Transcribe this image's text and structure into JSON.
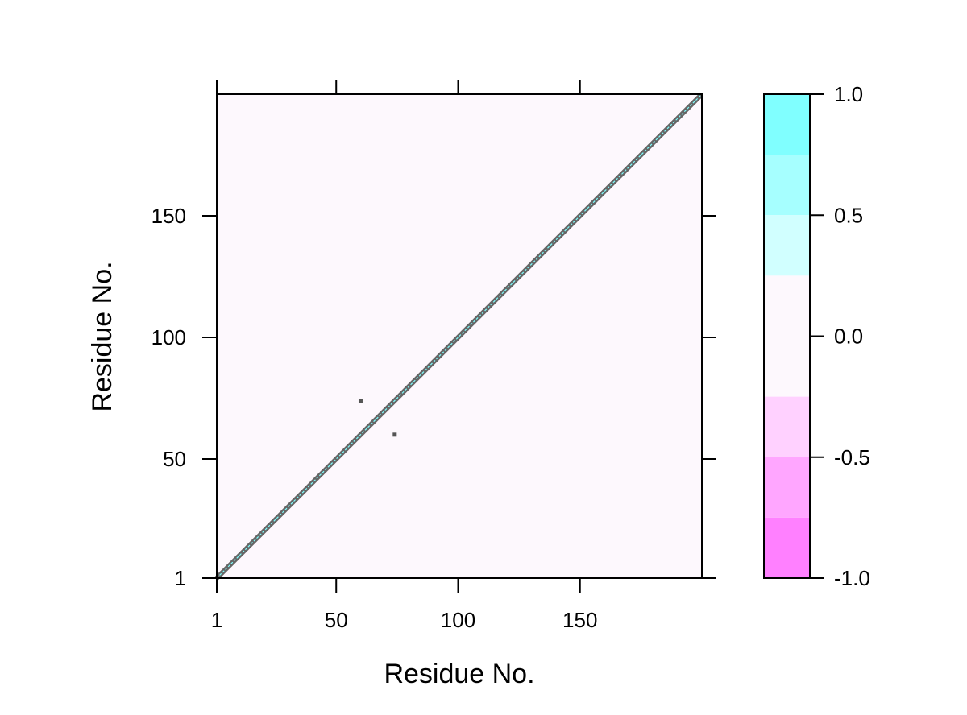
{
  "chart_data": {
    "type": "heatmap",
    "title": "",
    "xlabel": "Residue No.",
    "ylabel": "Residue No.",
    "xlim": [
      1,
      200
    ],
    "ylim": [
      1,
      200
    ],
    "x_ticks": [
      1,
      50,
      100,
      150
    ],
    "y_ticks": [
      1,
      50,
      100,
      150
    ],
    "x_tick_labels": [
      "1",
      "50",
      "100",
      "150"
    ],
    "y_tick_labels": [
      "1",
      "50",
      "100",
      "150"
    ],
    "background_value": 0.0,
    "background_color": "#fdf8fd",
    "diagonal": {
      "from": [
        1,
        1
      ],
      "to": [
        200,
        200
      ],
      "value": 1.0,
      "line_color": "#666666",
      "center_color": "#7fffff"
    },
    "off_diagonal_points": [
      {
        "x": 60,
        "y": 74
      },
      {
        "x": 74,
        "y": 60
      }
    ],
    "point_color": "#555555",
    "grid": false,
    "colorbar": {
      "position": "right",
      "range": [
        -1.0,
        1.0
      ],
      "tick_values": [
        1.0,
        0.5,
        0.0,
        -0.5,
        -1.0
      ],
      "tick_labels": [
        "1.0",
        "0.5",
        "0.0",
        "-0.5",
        "-1.0"
      ],
      "bins": [
        {
          "from": 0.75,
          "to": 1.0,
          "color": "#80ffff"
        },
        {
          "from": 0.5,
          "to": 0.75,
          "color": "#a6ffff"
        },
        {
          "from": 0.25,
          "to": 0.5,
          "color": "#d1ffff"
        },
        {
          "from": -0.25,
          "to": 0.25,
          "color": "#fdf8fd"
        },
        {
          "from": -0.5,
          "to": -0.25,
          "color": "#ffd1ff"
        },
        {
          "from": -0.75,
          "to": -0.5,
          "color": "#ffa6ff"
        },
        {
          "from": -1.0,
          "to": -0.75,
          "color": "#ff80ff"
        }
      ]
    }
  }
}
